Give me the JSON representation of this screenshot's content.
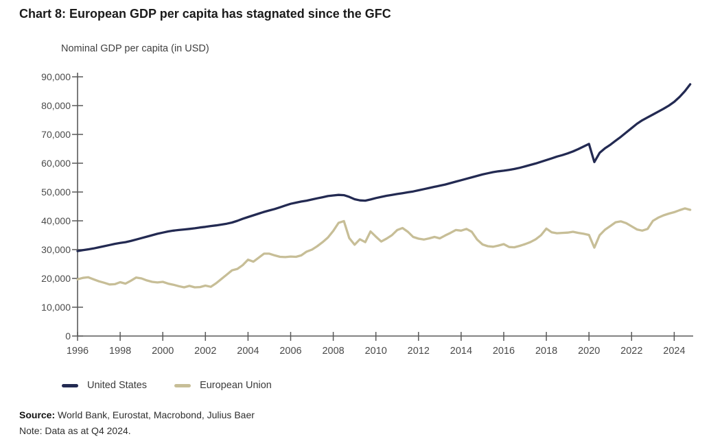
{
  "title": "Chart 8: European GDP per capita has stagnated since the GFC",
  "subtitle": "Nominal GDP per capita (in USD)",
  "footer": {
    "source_label": "Source:",
    "source_text": " World Bank, Eurostat, Macrobond, Julius Baer",
    "note": "Note: Data as at Q4 2024."
  },
  "colors": {
    "us_line": "#232a52",
    "eu_line": "#c7be97",
    "axis": "#595959",
    "tick_label": "#4a4a4a",
    "title_text": "#1b1b1b"
  },
  "chart_data": {
    "type": "line",
    "title": "Chart 8: European GDP per capita has stagnated since the GFC",
    "subtitle": "Nominal GDP per capita (in USD)",
    "unit": "USD",
    "frequency": "quarterly",
    "grid": false,
    "legend_position": "bottom-left",
    "xlim": [
      1996,
      2025
    ],
    "ylim": [
      0,
      90000
    ],
    "x_start": 1996.0,
    "x_step": 0.25,
    "x_tick_labels": [
      "1996",
      "1998",
      "2000",
      "2002",
      "2004",
      "2006",
      "2008",
      "2010",
      "2012",
      "2014",
      "2016",
      "2018",
      "2020",
      "2022",
      "2024"
    ],
    "y_tick_values": [
      0,
      10000,
      20000,
      30000,
      40000,
      50000,
      60000,
      70000,
      80000,
      90000
    ],
    "y_tick_labels": [
      "0",
      "10,000",
      "20,000",
      "30,000",
      "40,000",
      "50,000",
      "60,000",
      "70,000",
      "80,000",
      "90,000"
    ],
    "series": [
      {
        "name": "United States",
        "color": "#232a52",
        "values": [
          29500,
          29800,
          30100,
          30400,
          30800,
          31200,
          31600,
          32000,
          32300,
          32600,
          33000,
          33500,
          34000,
          34500,
          35000,
          35500,
          35900,
          36300,
          36600,
          36800,
          37000,
          37200,
          37400,
          37700,
          37900,
          38200,
          38400,
          38700,
          39000,
          39400,
          40000,
          40700,
          41300,
          41900,
          42500,
          43100,
          43600,
          44100,
          44700,
          45300,
          45900,
          46300,
          46700,
          47000,
          47400,
          47800,
          48200,
          48600,
          48800,
          49000,
          48900,
          48300,
          47500,
          47100,
          47000,
          47400,
          47900,
          48300,
          48700,
          49000,
          49300,
          49600,
          49900,
          50200,
          50600,
          51000,
          51400,
          51800,
          52200,
          52600,
          53100,
          53600,
          54100,
          54600,
          55100,
          55600,
          56100,
          56500,
          56900,
          57200,
          57400,
          57700,
          58000,
          58400,
          58900,
          59400,
          59900,
          60500,
          61100,
          61700,
          62300,
          62800,
          63400,
          64100,
          64900,
          65800,
          66700,
          60400,
          63600,
          65200,
          66400,
          67800,
          69200,
          70700,
          72200,
          73700,
          74900,
          75900,
          76900,
          77900,
          78900,
          80000,
          81300,
          83000,
          85000,
          87400
        ]
      },
      {
        "name": "European Union",
        "color": "#c7be97",
        "values": [
          19700,
          20200,
          20400,
          19700,
          19000,
          18500,
          17900,
          18000,
          18700,
          18200,
          19200,
          20300,
          20000,
          19300,
          18800,
          18600,
          18800,
          18200,
          17800,
          17300,
          16900,
          17400,
          16900,
          17000,
          17500,
          17100,
          18300,
          19800,
          21300,
          22800,
          23300,
          24600,
          26500,
          25800,
          27200,
          28600,
          28600,
          28000,
          27500,
          27400,
          27600,
          27500,
          28000,
          29300,
          30000,
          31200,
          32600,
          34200,
          36500,
          39300,
          39900,
          34000,
          31700,
          33600,
          32600,
          36300,
          34500,
          32800,
          33800,
          35000,
          36800,
          37500,
          36200,
          34400,
          33800,
          33500,
          33900,
          34400,
          33900,
          34900,
          35800,
          36800,
          36600,
          37200,
          36200,
          33500,
          31800,
          31200,
          31000,
          31400,
          31900,
          30900,
          30800,
          31300,
          31900,
          32600,
          33600,
          35000,
          37300,
          36000,
          35700,
          35800,
          35900,
          36200,
          35800,
          35500,
          35100,
          30700,
          35000,
          36900,
          38200,
          39500,
          39800,
          39200,
          38100,
          37000,
          36600,
          37200,
          40000,
          41100,
          41900,
          42500,
          43000,
          43700,
          44300,
          43800
        ]
      }
    ]
  }
}
